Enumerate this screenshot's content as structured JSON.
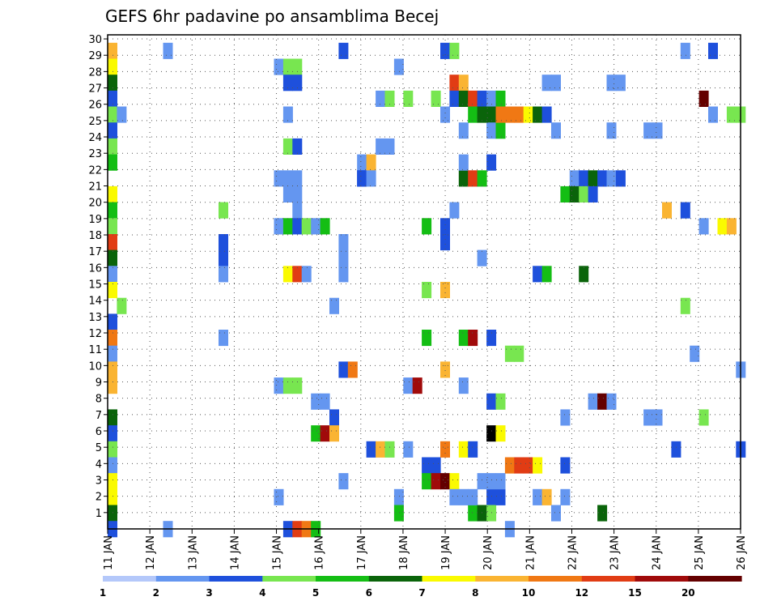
{
  "chart_data": {
    "type": "heatmap",
    "title": "GEFS 6hr padavine po ansamblima Becej",
    "xlabel": "",
    "ylabel": "",
    "x_tick_labels": [
      "11 JAN",
      "12 JAN",
      "13 JAN",
      "14 JAN",
      "15 JAN",
      "16 JAN",
      "17 JAN",
      "18 JAN",
      "19 JAN",
      "20 JAN",
      "21 JAN",
      "22 JAN",
      "23 JAN",
      "24 JAN",
      "25 JAN",
      "26 JAN"
    ],
    "y_tick_labels": [
      "1",
      "2",
      "3",
      "4",
      "5",
      "6",
      "7",
      "8",
      "9",
      "10",
      "11",
      "12",
      "13",
      "14",
      "15",
      "16",
      "17",
      "18",
      "19",
      "20",
      "21",
      "22",
      "23",
      "24",
      "25",
      "26",
      "27",
      "28",
      "29",
      "30"
    ],
    "xlim": [
      0,
      60
    ],
    "ylim": [
      0,
      30
    ],
    "grid": true,
    "legend_position": "bottom",
    "legend_levels": [
      "1",
      "2",
      "3",
      "4",
      "5",
      "6",
      "7",
      "8",
      "10",
      "12",
      "15",
      "20"
    ],
    "colors": [
      "#b4c8fa",
      "#6496f0",
      "#1e50dc",
      "#78e650",
      "#14be14",
      "#0a640a",
      "#fafa00",
      "#fab432",
      "#f07814",
      "#e13c14",
      "#a00a0a",
      "#640000"
    ],
    "cells": [
      [
        0,
        30,
        7
      ],
      [
        0,
        29,
        6
      ],
      [
        0,
        28,
        5
      ],
      [
        0,
        27,
        2
      ],
      [
        0,
        26,
        3
      ],
      [
        0,
        25,
        2
      ],
      [
        0,
        24,
        3
      ],
      [
        0,
        23,
        4
      ],
      [
        0,
        21,
        6
      ],
      [
        0,
        20,
        4
      ],
      [
        0,
        19,
        3
      ],
      [
        0,
        18,
        9
      ],
      [
        0,
        17,
        5
      ],
      [
        0,
        16,
        1
      ],
      [
        0,
        15,
        6
      ],
      [
        0,
        13,
        2
      ],
      [
        0,
        12,
        8
      ],
      [
        0,
        11,
        1
      ],
      [
        0,
        10,
        7
      ],
      [
        0,
        9,
        7
      ],
      [
        0,
        7,
        5
      ],
      [
        0,
        6,
        2
      ],
      [
        0,
        5,
        3
      ],
      [
        0,
        4,
        1
      ],
      [
        0,
        3,
        6
      ],
      [
        0,
        2,
        6
      ],
      [
        0,
        1,
        5
      ],
      [
        0,
        0,
        2
      ],
      [
        1,
        26,
        1
      ],
      [
        1,
        14,
        3
      ],
      [
        6,
        30,
        1
      ],
      [
        6,
        0,
        1
      ],
      [
        12,
        20,
        3
      ],
      [
        12,
        18,
        2
      ],
      [
        12,
        17,
        2
      ],
      [
        12,
        16,
        1
      ],
      [
        12,
        12,
        1
      ],
      [
        18,
        29,
        1
      ],
      [
        18,
        22,
        1
      ],
      [
        18,
        19,
        1
      ],
      [
        18,
        9,
        1
      ],
      [
        18,
        2,
        1
      ],
      [
        19,
        29,
        3
      ],
      [
        19,
        28,
        2
      ],
      [
        19,
        26,
        1
      ],
      [
        19,
        24,
        3
      ],
      [
        19,
        22,
        1
      ],
      [
        19,
        21,
        1
      ],
      [
        19,
        19,
        4
      ],
      [
        19,
        16,
        6
      ],
      [
        19,
        9,
        3
      ],
      [
        19,
        0,
        2
      ],
      [
        20,
        29,
        3
      ],
      [
        20,
        28,
        2
      ],
      [
        20,
        24,
        2
      ],
      [
        20,
        22,
        1
      ],
      [
        20,
        21,
        1
      ],
      [
        20,
        20,
        1
      ],
      [
        20,
        19,
        2
      ],
      [
        20,
        16,
        9
      ],
      [
        20,
        9,
        3
      ],
      [
        20,
        0,
        9
      ],
      [
        21,
        19,
        3
      ],
      [
        21,
        16,
        1
      ],
      [
        21,
        0,
        8
      ],
      [
        22,
        19,
        1
      ],
      [
        22,
        8,
        1
      ],
      [
        22,
        6,
        4
      ],
      [
        22,
        0,
        4
      ],
      [
        23,
        19,
        4
      ],
      [
        23,
        8,
        1
      ],
      [
        23,
        6,
        10
      ],
      [
        24,
        14,
        1
      ],
      [
        24,
        7,
        2
      ],
      [
        24,
        6,
        7
      ],
      [
        25,
        30,
        2
      ],
      [
        25,
        18,
        1
      ],
      [
        25,
        17,
        1
      ],
      [
        25,
        16,
        1
      ],
      [
        25,
        10,
        2
      ],
      [
        25,
        3,
        1
      ],
      [
        26,
        10,
        8
      ],
      [
        27,
        23,
        1
      ],
      [
        27,
        22,
        2
      ],
      [
        27,
        22,
        2
      ],
      [
        28,
        23,
        7
      ],
      [
        28,
        22,
        1
      ],
      [
        28,
        5,
        2
      ],
      [
        29,
        27,
        1
      ],
      [
        29,
        24,
        1
      ],
      [
        29,
        5,
        7
      ],
      [
        30,
        27,
        3
      ],
      [
        30,
        24,
        1
      ],
      [
        30,
        5,
        3
      ],
      [
        31,
        29,
        1
      ],
      [
        31,
        2,
        1
      ],
      [
        31,
        1,
        4
      ],
      [
        32,
        27,
        3
      ],
      [
        32,
        9,
        1
      ],
      [
        32,
        5,
        1
      ],
      [
        33,
        9,
        10
      ],
      [
        34,
        19,
        4
      ],
      [
        34,
        15,
        3
      ],
      [
        34,
        12,
        4
      ],
      [
        34,
        4,
        2
      ],
      [
        34,
        3,
        4
      ],
      [
        35,
        27,
        3
      ],
      [
        35,
        4,
        2
      ],
      [
        35,
        3,
        10
      ],
      [
        36,
        30,
        2
      ],
      [
        36,
        26,
        1
      ],
      [
        36,
        19,
        2
      ],
      [
        36,
        18,
        2
      ],
      [
        36,
        15,
        7
      ],
      [
        36,
        10,
        7
      ],
      [
        36,
        5,
        8
      ],
      [
        36,
        3,
        11
      ],
      [
        37,
        30,
        3
      ],
      [
        37,
        28,
        9
      ],
      [
        37,
        27,
        2
      ],
      [
        37,
        20,
        1
      ],
      [
        37,
        3,
        6
      ],
      [
        37,
        2,
        1
      ],
      [
        38,
        28,
        7
      ],
      [
        38,
        27,
        5
      ],
      [
        38,
        25,
        1
      ],
      [
        38,
        22,
        5
      ],
      [
        38,
        23,
        1
      ],
      [
        38,
        12,
        4
      ],
      [
        38,
        9,
        1
      ],
      [
        38,
        5,
        6
      ],
      [
        38,
        2,
        1
      ],
      [
        39,
        27,
        9
      ],
      [
        39,
        26,
        4
      ],
      [
        39,
        22,
        9
      ],
      [
        39,
        12,
        10
      ],
      [
        39,
        5,
        2
      ],
      [
        39,
        1,
        4
      ],
      [
        39,
        2,
        1
      ],
      [
        40,
        27,
        2
      ],
      [
        40,
        26,
        5
      ],
      [
        40,
        22,
        4
      ],
      [
        40,
        17,
        1
      ],
      [
        40,
        3,
        1
      ],
      [
        40,
        1,
        5
      ],
      [
        41,
        27,
        1
      ],
      [
        41,
        26,
        5
      ],
      [
        41,
        25,
        1
      ],
      [
        41,
        23,
        2
      ],
      [
        41,
        12,
        2
      ],
      [
        41,
        8,
        2
      ],
      [
        41,
        6,
        12
      ],
      [
        41,
        2,
        2
      ],
      [
        41,
        1,
        3
      ],
      [
        41,
        3,
        1
      ],
      [
        42,
        27,
        4
      ],
      [
        42,
        25,
        4
      ],
      [
        42,
        26,
        8
      ],
      [
        42,
        8,
        3
      ],
      [
        42,
        6,
        6
      ],
      [
        42,
        2,
        2
      ],
      [
        42,
        3,
        1
      ],
      [
        43,
        26,
        8
      ],
      [
        43,
        11,
        3
      ],
      [
        43,
        4,
        8
      ],
      [
        43,
        0,
        1
      ],
      [
        44,
        26,
        8
      ],
      [
        44,
        11,
        3
      ],
      [
        44,
        4,
        9
      ],
      [
        45,
        26,
        6
      ],
      [
        45,
        4,
        9
      ],
      [
        46,
        26,
        5
      ],
      [
        46,
        16,
        2
      ],
      [
        46,
        4,
        6
      ],
      [
        46,
        2,
        1
      ],
      [
        47,
        28,
        1
      ],
      [
        47,
        26,
        2
      ],
      [
        47,
        16,
        4
      ],
      [
        47,
        2,
        7
      ],
      [
        48,
        28,
        1
      ],
      [
        48,
        25,
        1
      ],
      [
        48,
        1,
        1
      ],
      [
        49,
        21,
        4
      ],
      [
        49,
        7,
        1
      ],
      [
        49,
        2,
        1
      ],
      [
        49,
        4,
        2
      ],
      [
        50,
        22,
        1
      ],
      [
        50,
        21,
        5
      ],
      [
        51,
        22,
        2
      ],
      [
        51,
        21,
        3
      ],
      [
        51,
        16,
        5
      ],
      [
        52,
        22,
        5
      ],
      [
        52,
        21,
        2
      ],
      [
        52,
        8,
        1
      ],
      [
        53,
        22,
        2
      ],
      [
        53,
        8,
        11
      ],
      [
        53,
        1,
        5
      ],
      [
        54,
        28,
        1
      ],
      [
        54,
        25,
        1
      ],
      [
        54,
        22,
        1
      ],
      [
        54,
        8,
        1
      ],
      [
        55,
        28,
        1
      ],
      [
        55,
        22,
        2
      ],
      [
        58,
        25,
        1
      ],
      [
        58,
        7,
        1
      ],
      [
        59,
        25,
        1
      ],
      [
        59,
        7,
        1
      ],
      [
        60,
        20,
        7
      ],
      [
        61,
        5,
        2
      ],
      [
        62,
        30,
        1
      ],
      [
        62,
        20,
        2
      ],
      [
        62,
        14,
        3
      ],
      [
        63,
        11,
        1
      ],
      [
        64,
        27,
        11
      ],
      [
        64,
        19,
        1
      ],
      [
        64,
        7,
        3
      ],
      [
        65,
        30,
        2
      ],
      [
        65,
        26,
        1
      ],
      [
        66,
        19,
        6
      ],
      [
        67,
        26,
        3
      ],
      [
        67,
        19,
        7
      ],
      [
        68,
        26,
        3
      ],
      [
        68,
        10,
        1
      ],
      [
        68,
        5,
        2
      ]
    ]
  }
}
